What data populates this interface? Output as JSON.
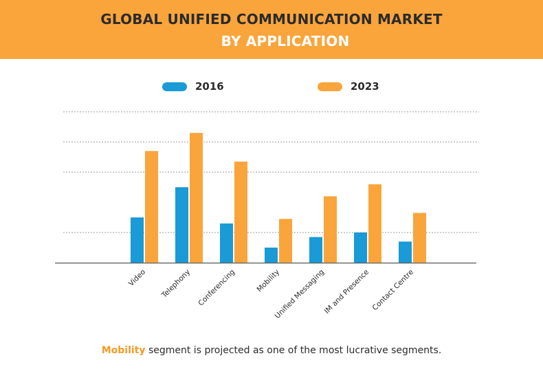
{
  "header": {
    "title_line1": "GLOBAL UNIFIED COMMUNICATION MARKET",
    "title_line2": "BY APPLICATION"
  },
  "colors": {
    "header_bg": "#f9a53c",
    "series_2016": "#1a9ad6",
    "series_2023": "#f9a53c",
    "highlight": "#f39c25"
  },
  "chart_data": {
    "type": "bar",
    "title": "GLOBAL UNIFIED COMMUNICATION MARKET BY APPLICATION",
    "xlabel": "",
    "ylabel": "",
    "ylim": [
      0,
      100
    ],
    "grid": true,
    "legend": "top-center",
    "categories": [
      "Video",
      "Telephony",
      "Conferencing",
      "Mobility",
      "Unified Messaging",
      "IM and Presence",
      "Contact Centre"
    ],
    "series": [
      {
        "name": "2016",
        "values": [
          30,
          50,
          26,
          10,
          17,
          20,
          14
        ]
      },
      {
        "name": "2023",
        "values": [
          74,
          86,
          67,
          29,
          44,
          52,
          33
        ]
      }
    ]
  },
  "footer": {
    "highlight": "Mobility",
    "text": " segment is projected as one of the most lucrative segments."
  }
}
